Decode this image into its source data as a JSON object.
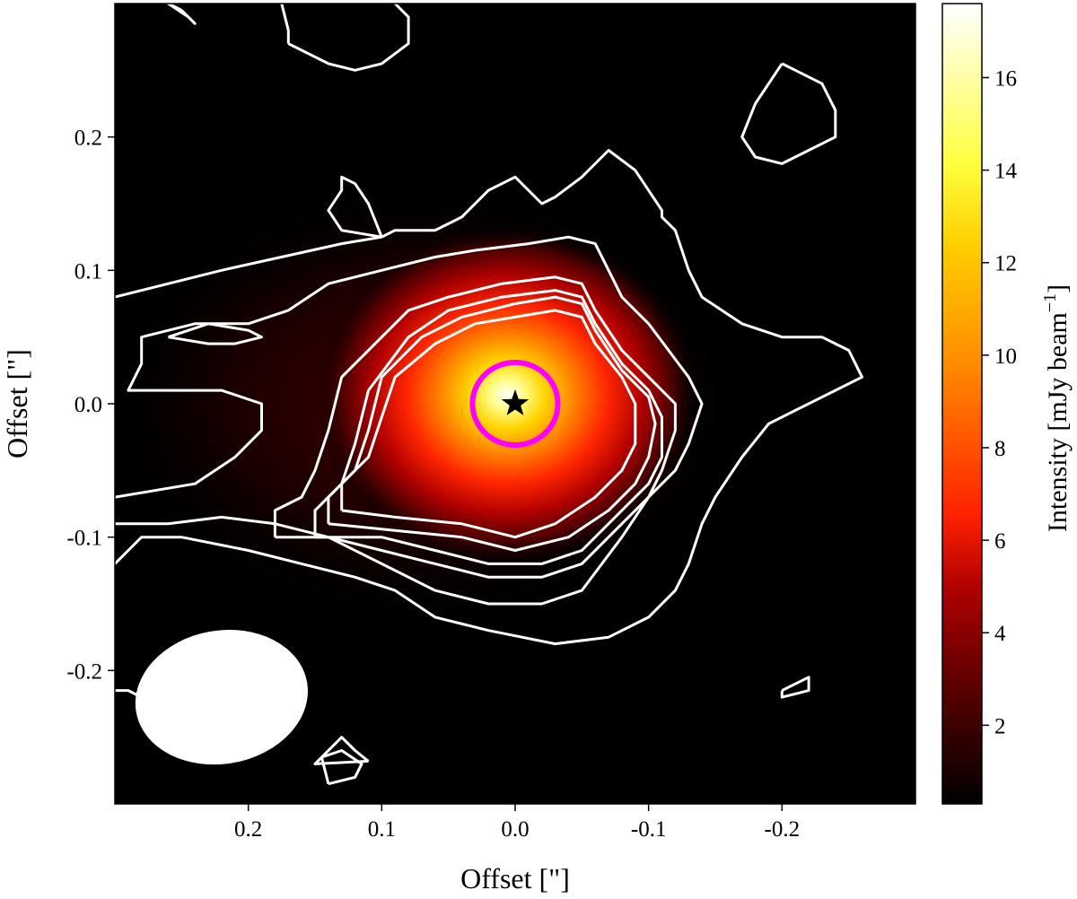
{
  "chart_data": {
    "type": "heatmap",
    "xlabel": "Offset [\"]",
    "ylabel": "Offset [\"]",
    "xlim": [
      0.3,
      -0.3
    ],
    "ylim": [
      -0.3,
      0.3
    ],
    "x_ticks": [
      {
        "value": 0.2,
        "label": "0.2"
      },
      {
        "value": 0.1,
        "label": "0.1"
      },
      {
        "value": 0.0,
        "label": "0.0"
      },
      {
        "value": -0.1,
        "label": "-0.1"
      },
      {
        "value": -0.2,
        "label": "-0.2"
      }
    ],
    "y_ticks": [
      {
        "value": 0.2,
        "label": "0.2"
      },
      {
        "value": 0.1,
        "label": "0.1"
      },
      {
        "value": 0.0,
        "label": "0.0"
      },
      {
        "value": -0.1,
        "label": "-0.1"
      },
      {
        "value": -0.2,
        "label": "-0.2"
      }
    ],
    "colorbar": {
      "label_main": "Intensity [mJy beam",
      "label_sup": "−1",
      "label_end": "]",
      "range": [
        0.3,
        17.6
      ],
      "ticks": [
        {
          "value": 2,
          "label": "2"
        },
        {
          "value": 4,
          "label": "4"
        },
        {
          "value": 6,
          "label": "6"
        },
        {
          "value": 8,
          "label": "8"
        },
        {
          "value": 10,
          "label": "10"
        },
        {
          "value": 12,
          "label": "12"
        },
        {
          "value": 14,
          "label": "14"
        },
        {
          "value": 16,
          "label": "16"
        }
      ],
      "colormap": "hot",
      "stops": [
        "#000000",
        "#4a0000",
        "#b00000",
        "#ff2000",
        "#ff8c00",
        "#ffd000",
        "#ffff40",
        "#ffffff"
      ]
    },
    "peak_intensity": 17.4,
    "star_position": [
      0.0,
      0.0
    ],
    "beam": {
      "center": [
        0.22,
        -0.22
      ],
      "major": 0.13,
      "minor": 0.1,
      "color": "#ffffff"
    },
    "marker_ellipse": {
      "center": [
        0.0,
        0.0
      ],
      "rx": 0.032,
      "ry": 0.031,
      "color": "#ff00ff"
    },
    "contour_color": "#ffffff",
    "contours": [
      [
        [
          0.3,
          0.08
        ],
        [
          0.22,
          0.1
        ],
        [
          0.13,
          0.12
        ],
        [
          0.1,
          0.125
        ],
        [
          0.11,
          0.15
        ],
        [
          0.12,
          0.165
        ],
        [
          0.13,
          0.17
        ],
        [
          0.13,
          0.16
        ],
        [
          0.14,
          0.145
        ],
        [
          0.13,
          0.13
        ],
        [
          0.1,
          0.125
        ],
        [
          0.09,
          0.13
        ],
        [
          0.06,
          0.13
        ],
        [
          0.04,
          0.14
        ],
        [
          0.02,
          0.16
        ],
        [
          0.0,
          0.17
        ],
        [
          -0.02,
          0.15
        ],
        [
          -0.03,
          0.155
        ],
        [
          -0.05,
          0.17
        ],
        [
          -0.07,
          0.19
        ],
        [
          -0.09,
          0.175
        ],
        [
          -0.11,
          0.145
        ],
        [
          -0.11,
          0.14
        ],
        [
          -0.12,
          0.13
        ],
        [
          -0.13,
          0.1
        ],
        [
          -0.14,
          0.08
        ],
        [
          -0.17,
          0.06
        ],
        [
          -0.2,
          0.05
        ],
        [
          -0.23,
          0.05
        ],
        [
          -0.25,
          0.04
        ],
        [
          -0.26,
          0.02
        ],
        [
          -0.24,
          0.01
        ],
        [
          -0.21,
          -0.005
        ],
        [
          -0.19,
          -0.015
        ],
        [
          -0.17,
          -0.04
        ],
        [
          -0.15,
          -0.07
        ],
        [
          -0.14,
          -0.09
        ],
        [
          -0.13,
          -0.12
        ],
        [
          -0.12,
          -0.14
        ],
        [
          -0.1,
          -0.16
        ],
        [
          -0.07,
          -0.175
        ],
        [
          -0.03,
          -0.18
        ],
        [
          0.02,
          -0.17
        ],
        [
          0.06,
          -0.16
        ],
        [
          0.09,
          -0.14
        ],
        [
          0.12,
          -0.13
        ],
        [
          0.16,
          -0.12
        ],
        [
          0.2,
          -0.11
        ],
        [
          0.25,
          -0.1
        ],
        [
          0.28,
          -0.1
        ],
        [
          0.29,
          -0.11
        ],
        [
          0.3,
          -0.12
        ]
      ],
      [
        [
          0.3,
          -0.07
        ],
        [
          0.24,
          -0.06
        ],
        [
          0.21,
          -0.04
        ],
        [
          0.19,
          -0.02
        ],
        [
          0.19,
          0.0
        ],
        [
          0.22,
          0.01
        ],
        [
          0.27,
          0.01
        ],
        [
          0.29,
          0.01
        ],
        [
          0.28,
          0.03
        ],
        [
          0.28,
          0.05
        ],
        [
          0.24,
          0.06
        ],
        [
          0.2,
          0.06
        ],
        [
          0.17,
          0.07
        ],
        [
          0.14,
          0.09
        ],
        [
          0.1,
          0.1
        ],
        [
          0.06,
          0.11
        ],
        [
          0.03,
          0.115
        ],
        [
          -0.01,
          0.12
        ],
        [
          -0.04,
          0.125
        ],
        [
          -0.06,
          0.12
        ],
        [
          -0.07,
          0.1
        ],
        [
          -0.08,
          0.08
        ],
        [
          -0.1,
          0.06
        ],
        [
          -0.13,
          0.02
        ],
        [
          -0.14,
          0.0
        ],
        [
          -0.13,
          -0.03
        ],
        [
          -0.12,
          -0.05
        ],
        [
          -0.1,
          -0.07
        ],
        [
          -0.08,
          -0.1
        ],
        [
          -0.05,
          -0.14
        ],
        [
          -0.02,
          -0.15
        ],
        [
          0.02,
          -0.15
        ],
        [
          0.06,
          -0.14
        ],
        [
          0.1,
          -0.12
        ],
        [
          0.14,
          -0.1
        ],
        [
          0.18,
          -0.09
        ],
        [
          0.22,
          -0.085
        ],
        [
          0.26,
          -0.09
        ],
        [
          0.3,
          -0.09
        ]
      ],
      [
        [
          0.26,
          0.05
        ],
        [
          0.23,
          0.06
        ],
        [
          0.2,
          0.055
        ],
        [
          0.19,
          0.05
        ],
        [
          0.21,
          0.045
        ],
        [
          0.23,
          0.045
        ],
        [
          0.26,
          0.05
        ]
      ],
      [
        [
          0.18,
          -0.1
        ],
        [
          0.18,
          -0.08
        ],
        [
          0.16,
          -0.07
        ],
        [
          0.15,
          -0.05
        ],
        [
          0.14,
          -0.02
        ],
        [
          0.13,
          0.02
        ],
        [
          0.1,
          0.05
        ],
        [
          0.08,
          0.07
        ],
        [
          0.05,
          0.08
        ],
        [
          0.01,
          0.09
        ],
        [
          -0.03,
          0.095
        ],
        [
          -0.05,
          0.09
        ],
        [
          -0.06,
          0.07
        ],
        [
          -0.08,
          0.04
        ],
        [
          -0.1,
          0.02
        ],
        [
          -0.12,
          0.0
        ],
        [
          -0.12,
          -0.02
        ],
        [
          -0.11,
          -0.05
        ],
        [
          -0.1,
          -0.07
        ],
        [
          -0.08,
          -0.09
        ],
        [
          -0.05,
          -0.12
        ],
        [
          -0.02,
          -0.13
        ],
        [
          0.02,
          -0.13
        ],
        [
          0.06,
          -0.12
        ],
        [
          0.1,
          -0.11
        ],
        [
          0.14,
          -0.1
        ],
        [
          0.18,
          -0.1
        ]
      ],
      [
        [
          0.15,
          -0.1
        ],
        [
          0.15,
          -0.08
        ],
        [
          0.13,
          -0.06
        ],
        [
          0.12,
          -0.03
        ],
        [
          0.11,
          0.01
        ],
        [
          0.08,
          0.05
        ],
        [
          0.05,
          0.07
        ],
        [
          0.01,
          0.08
        ],
        [
          -0.03,
          0.085
        ],
        [
          -0.05,
          0.08
        ],
        [
          -0.06,
          0.06
        ],
        [
          -0.08,
          0.03
        ],
        [
          -0.1,
          0.01
        ],
        [
          -0.11,
          -0.01
        ],
        [
          -0.11,
          -0.04
        ],
        [
          -0.1,
          -0.06
        ],
        [
          -0.08,
          -0.08
        ],
        [
          -0.05,
          -0.11
        ],
        [
          -0.02,
          -0.12
        ],
        [
          0.02,
          -0.12
        ],
        [
          0.06,
          -0.11
        ],
        [
          0.1,
          -0.1
        ],
        [
          0.15,
          -0.1
        ]
      ],
      [
        [
          0.14,
          -0.09
        ],
        [
          0.14,
          -0.07
        ],
        [
          0.12,
          -0.05
        ],
        [
          0.11,
          -0.02
        ],
        [
          0.1,
          0.02
        ],
        [
          0.07,
          0.05
        ],
        [
          0.04,
          0.065
        ],
        [
          0.0,
          0.075
        ],
        [
          -0.03,
          0.08
        ],
        [
          -0.05,
          0.075
        ],
        [
          -0.06,
          0.055
        ],
        [
          -0.08,
          0.025
        ],
        [
          -0.1,
          0.005
        ],
        [
          -0.105,
          -0.015
        ],
        [
          -0.1,
          -0.04
        ],
        [
          -0.09,
          -0.06
        ],
        [
          -0.07,
          -0.08
        ],
        [
          -0.04,
          -0.1
        ],
        [
          0.0,
          -0.11
        ],
        [
          0.04,
          -0.1
        ],
        [
          0.09,
          -0.095
        ],
        [
          0.14,
          -0.09
        ]
      ],
      [
        [
          0.13,
          -0.08
        ],
        [
          0.13,
          -0.06
        ],
        [
          0.11,
          -0.04
        ],
        [
          0.1,
          -0.01
        ],
        [
          0.09,
          0.02
        ],
        [
          0.06,
          0.045
        ],
        [
          0.03,
          0.06
        ],
        [
          0.0,
          0.065
        ],
        [
          -0.03,
          0.07
        ],
        [
          -0.05,
          0.065
        ],
        [
          -0.06,
          0.045
        ],
        [
          -0.08,
          0.02
        ],
        [
          -0.09,
          0.0
        ],
        [
          -0.09,
          -0.03
        ],
        [
          -0.08,
          -0.05
        ],
        [
          -0.06,
          -0.07
        ],
        [
          -0.03,
          -0.09
        ],
        [
          0.0,
          -0.1
        ],
        [
          0.04,
          -0.09
        ],
        [
          0.09,
          -0.085
        ],
        [
          0.13,
          -0.08
        ]
      ],
      [
        [
          0.25,
          0.295
        ],
        [
          0.26,
          0.3
        ],
        [
          0.245,
          0.29
        ],
        [
          0.24,
          0.285
        ],
        [
          0.25,
          0.295
        ]
      ],
      [
        [
          0.17,
          0.27
        ],
        [
          0.14,
          0.255
        ],
        [
          0.12,
          0.25
        ],
        [
          0.1,
          0.255
        ],
        [
          0.08,
          0.27
        ],
        [
          0.08,
          0.29
        ],
        [
          0.09,
          0.3
        ]
      ],
      [
        [
          0.175,
          0.3
        ],
        [
          0.17,
          0.28
        ],
        [
          0.17,
          0.27
        ]
      ],
      [
        [
          -0.2,
          0.255
        ],
        [
          -0.23,
          0.24
        ],
        [
          -0.24,
          0.22
        ],
        [
          -0.24,
          0.2
        ],
        [
          -0.22,
          0.19
        ],
        [
          -0.2,
          0.18
        ],
        [
          -0.18,
          0.185
        ],
        [
          -0.17,
          0.2
        ],
        [
          -0.18,
          0.225
        ],
        [
          -0.2,
          0.255
        ]
      ],
      [
        [
          0.31,
          -0.215
        ],
        [
          0.29,
          -0.215
        ],
        [
          0.28,
          -0.22
        ]
      ],
      [
        [
          0.11,
          -0.268
        ],
        [
          0.15,
          -0.27
        ],
        [
          0.13,
          -0.25
        ],
        [
          0.12,
          -0.26
        ],
        [
          0.11,
          -0.268
        ]
      ],
      [
        [
          0.14,
          -0.285
        ],
        [
          0.145,
          -0.265
        ],
        [
          0.13,
          -0.26
        ],
        [
          0.115,
          -0.27
        ],
        [
          0.12,
          -0.28
        ],
        [
          0.14,
          -0.285
        ]
      ],
      [
        [
          -0.2,
          -0.215
        ],
        [
          -0.21,
          -0.21
        ],
        [
          -0.22,
          -0.205
        ],
        [
          -0.22,
          -0.215
        ],
        [
          -0.2,
          -0.22
        ],
        [
          -0.2,
          -0.215
        ]
      ]
    ]
  }
}
